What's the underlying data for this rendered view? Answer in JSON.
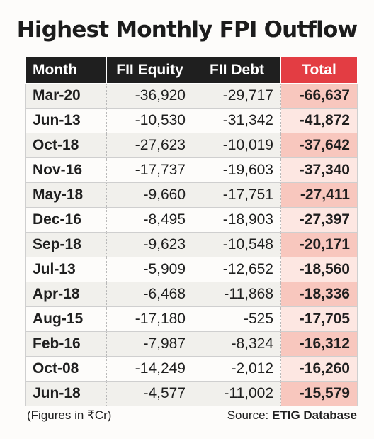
{
  "chart_data": {
    "type": "table",
    "title": "Highest Monthly FPI Outflow",
    "columns": [
      "Month",
      "FII Equity",
      "FII Debt",
      "Total"
    ],
    "rows": [
      [
        "Mar-20",
        "-36,920",
        "-29,717",
        "-66,637"
      ],
      [
        "Jun-13",
        "-10,530",
        "-31,342",
        "-41,872"
      ],
      [
        "Oct-18",
        "-27,623",
        "-10,019",
        "-37,642"
      ],
      [
        "Nov-16",
        "-17,737",
        "-19,603",
        "-37,340"
      ],
      [
        "May-18",
        "-9,660",
        "-17,751",
        "-27,411"
      ],
      [
        "Dec-16",
        "-8,495",
        "-18,903",
        "-27,397"
      ],
      [
        "Sep-18",
        "-9,623",
        "-10,548",
        "-20,171"
      ],
      [
        "Jul-13",
        "-5,909",
        "-12,652",
        "-18,560"
      ],
      [
        "Apr-18",
        "-6,468",
        "-11,868",
        "-18,336"
      ],
      [
        "Aug-15",
        "-17,180",
        "-525",
        "-17,705"
      ],
      [
        "Feb-16",
        "-7,987",
        "-8,324",
        "-16,312"
      ],
      [
        "Oct-08",
        "-14,249",
        "-2,012",
        "-16,260"
      ],
      [
        "Jun-18",
        "-4,577",
        "-11,002",
        "-15,579"
      ]
    ],
    "note": "(Figures in ₹Cr)",
    "source_label": "Source: ",
    "source_name": "ETIG Database"
  },
  "colors": {
    "header_bg": "#1f1f1f",
    "total_header_bg": "#e33d43",
    "total_cell_odd": "#f8c7be",
    "total_cell_even": "#fde7e2",
    "row_odd": "#f1f0ec"
  }
}
